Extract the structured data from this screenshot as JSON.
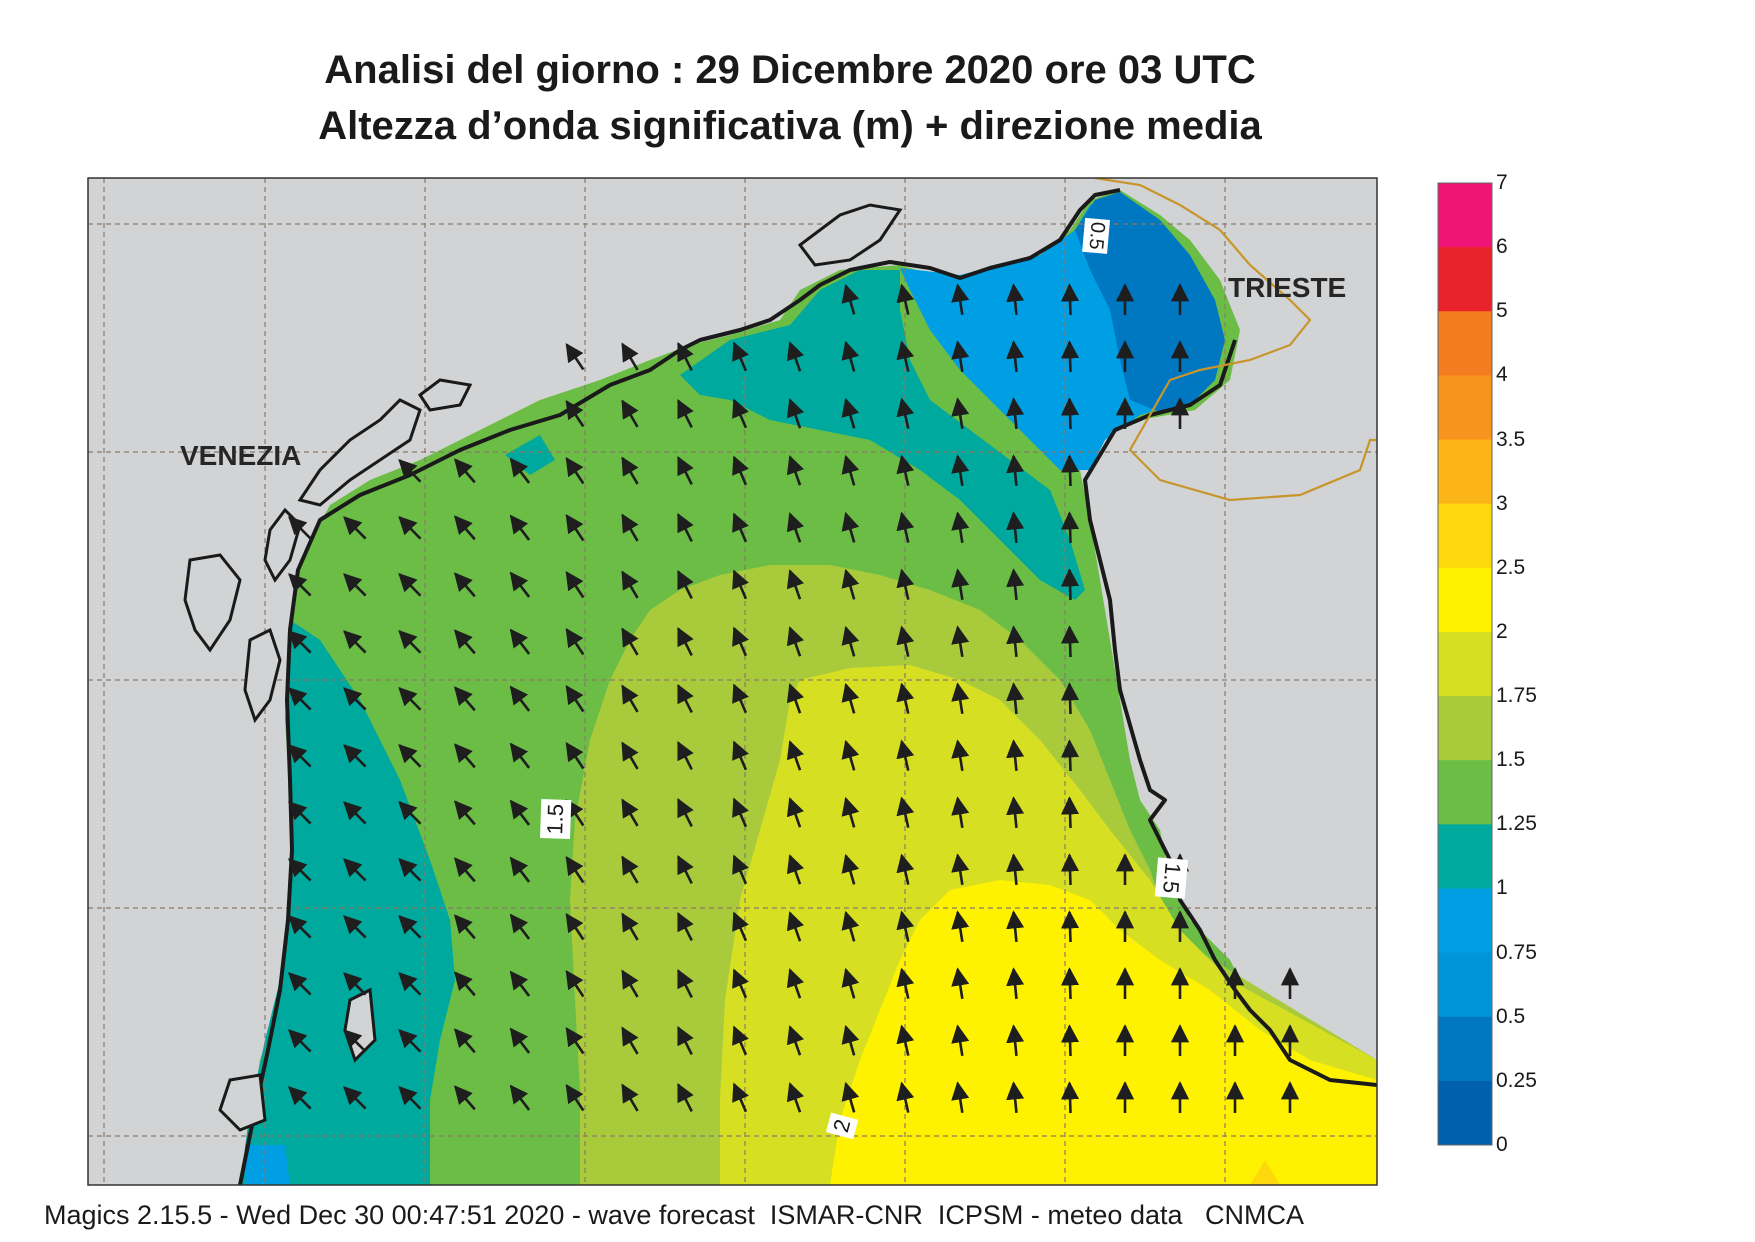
{
  "header": {
    "line1": "Analisi del giorno :  29 Dicembre  2020   ore 03 UTC",
    "line2": "Altezza d’onda significativa (m) + direzione media"
  },
  "places": {
    "venezia": "VENEZIA",
    "trieste": "TRIESTE"
  },
  "contour_labels": {
    "west_1_5": "1.5",
    "east_1_5": "1.5",
    "south_2": "2",
    "north_0_5": "0.5"
  },
  "legend": {
    "ticks": [
      "7",
      "6",
      "5",
      "4",
      "3.5",
      "3",
      "2.5",
      "2",
      "1.75",
      "1.5",
      "1.25",
      "1",
      "0.75",
      "0.5",
      "0.25",
      "0"
    ],
    "colors": [
      "#ee1577",
      "#e82329",
      "#f37b20",
      "#f7941d",
      "#fbb516",
      "#fdd80d",
      "#fff200",
      "#d7df23",
      "#a9cb3b",
      "#6cbd45",
      "#00a99d",
      "#009fe3",
      "#0094d9",
      "#0078c1",
      "#0060ad"
    ]
  },
  "colors": {
    "land": "#d1d3d4",
    "coast": "#1a1a1a",
    "border": "#c8952a",
    "grid": "#8a7a6a",
    "arrow": "#1e1e1e"
  },
  "wave_direction": "mean direction arrows pointing north / north-west",
  "footer": {
    "text": "Magics 2.15.5 - Wed Dec 30 00:47:51 2020 - wave forecast  ISMAR-CNR  ICPSM - meteo data   CNMCA"
  }
}
